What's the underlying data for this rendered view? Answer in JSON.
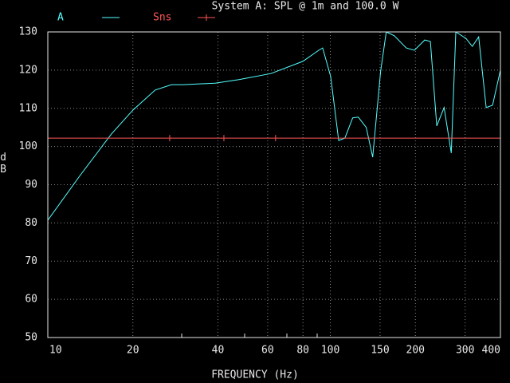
{
  "chart_data": {
    "type": "line",
    "title": "System A: SPL @ 1m and 100.0 W",
    "xlabel": "FREQUENCY (Hz)",
    "ylabel": "dB",
    "xscale": "log",
    "grid": true,
    "xlim": [
      10,
      400
    ],
    "ylim": [
      50,
      130
    ],
    "xticks": [
      10,
      20,
      40,
      60,
      80,
      100,
      150,
      200,
      300,
      400
    ],
    "yticks": [
      50,
      60,
      70,
      80,
      90,
      100,
      110,
      120,
      130
    ],
    "series": [
      {
        "name": "A",
        "color": "#55ffff",
        "x": [
          10,
          13,
          16.8,
          20,
          24,
          27.4,
          30.2,
          39.1,
          47.5,
          61.6,
          79.9,
          91,
          93.9,
          100.3,
          107,
          112.6,
          120,
          125.6,
          134,
          141.2,
          150.6,
          157.7,
          168.4,
          185.6,
          198.3,
          216,
          226,
          238,
          252.7,
          268,
          278,
          302,
          318,
          335,
          356,
          375,
          400
        ],
        "values": [
          80.7,
          92.4,
          103.3,
          109.5,
          114.8,
          116.2,
          116.2,
          116.6,
          117.5,
          119.1,
          122.3,
          125.2,
          125.8,
          118.3,
          101.6,
          102.2,
          107.5,
          107.7,
          105,
          97.2,
          119.6,
          130,
          129,
          125.8,
          125.2,
          127.9,
          127.5,
          105.4,
          110.2,
          98.3,
          130,
          128.3,
          126.2,
          128.7,
          110.2,
          110.8,
          120
        ]
      },
      {
        "name": "Sns",
        "color": "#ff5555",
        "x": [
          27,
          42,
          64
        ],
        "values": [
          102.2,
          102.2,
          102.2
        ]
      }
    ]
  }
}
